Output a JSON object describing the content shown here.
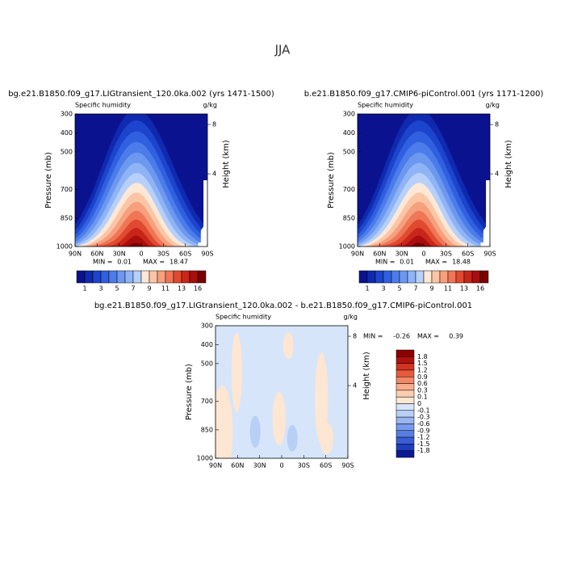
{
  "title": "JJA",
  "chart_data": [
    {
      "type": "contour",
      "title": "bg.e21.B1850.f09_g17.LIGtransient_120.0ka.002 (yrs 1471-1500)",
      "subtitle": "Specific humidity",
      "units": "g/kg",
      "ylabel": "Pressure (mb)",
      "y2label": "Height (km)",
      "categories": [
        "90N",
        "60N",
        "30N",
        "0",
        "30S",
        "60S",
        "90S"
      ],
      "ylim": [
        1000,
        300
      ],
      "yticks": [
        300,
        400,
        500,
        700,
        850,
        1000
      ],
      "y2ticks": [
        8,
        4
      ],
      "min_label": "MIN =",
      "min": 0.01,
      "max_label": "MAX =",
      "max": 18.47,
      "colorbar": {
        "levels": [
          1,
          3,
          5,
          7,
          9,
          11,
          13,
          16
        ],
        "colors": [
          "#0b1290",
          "#0f2aae",
          "#1c44cc",
          "#3060e0",
          "#4c7cea",
          "#6c98f0",
          "#8fb4f5",
          "#b6d0f9",
          "#fde8d8",
          "#fbc6a6",
          "#f6a07e",
          "#ef7656",
          "#e04a30",
          "#c92619",
          "#a80e0e",
          "#7a0000"
        ]
      }
    },
    {
      "type": "contour",
      "title": "b.e21.B1850.f09_g17.CMIP6-piControl.001 (yrs 1171-1200)",
      "subtitle": "Specific humidity",
      "units": "g/kg",
      "ylabel": "Pressure (mb)",
      "y2label": "Height (km)",
      "categories": [
        "90N",
        "60N",
        "30N",
        "0",
        "30S",
        "60S",
        "90S"
      ],
      "ylim": [
        1000,
        300
      ],
      "yticks": [
        300,
        400,
        500,
        700,
        850,
        1000
      ],
      "y2ticks": [
        8,
        4
      ],
      "min_label": "MIN =",
      "min": 0.01,
      "max_label": "MAX =",
      "max": 18.48,
      "colorbar": {
        "levels": [
          1,
          3,
          5,
          7,
          9,
          11,
          13,
          16
        ],
        "colors": [
          "#0b1290",
          "#0f2aae",
          "#1c44cc",
          "#3060e0",
          "#4c7cea",
          "#6c98f0",
          "#8fb4f5",
          "#b6d0f9",
          "#fde8d8",
          "#fbc6a6",
          "#f6a07e",
          "#ef7656",
          "#e04a30",
          "#c92619",
          "#a80e0e",
          "#7a0000"
        ]
      }
    },
    {
      "type": "contour-diff",
      "title": "bg.e21.B1850.f09_g17.LIGtransient_120.0ka.002 - b.e21.B1850.f09_g17.CMIP6-piControl.001",
      "subtitle": "Specific humidity",
      "units": "g/kg",
      "ylabel": "Pressure (mb)",
      "y2label": "Height (km)",
      "categories": [
        "90N",
        "60N",
        "30N",
        "0",
        "30S",
        "60S",
        "90S"
      ],
      "ylim": [
        1000,
        300
      ],
      "yticks": [
        300,
        400,
        500,
        700,
        850,
        1000
      ],
      "y2ticks": [
        8,
        4
      ],
      "min_label": "MIN =",
      "min": -0.26,
      "max_label": "MAX =",
      "max": 0.39,
      "colorbar": {
        "levels": [
          1.8,
          1.5,
          1.2,
          0.9,
          0.6,
          0.3,
          0.1,
          0,
          -0.1,
          -0.3,
          -0.6,
          -0.9,
          -1.2,
          -1.5,
          -1.8
        ],
        "colors": [
          "#8b0000",
          "#b01212",
          "#d23222",
          "#e85a3c",
          "#f38866",
          "#f8ad8c",
          "#fbcdb0",
          "#fde6d2",
          "#d6e5fa",
          "#b8d0f6",
          "#98b6f1",
          "#779aec",
          "#577ce4",
          "#395ed6",
          "#1f3ebe",
          "#0a1a96"
        ]
      }
    }
  ]
}
